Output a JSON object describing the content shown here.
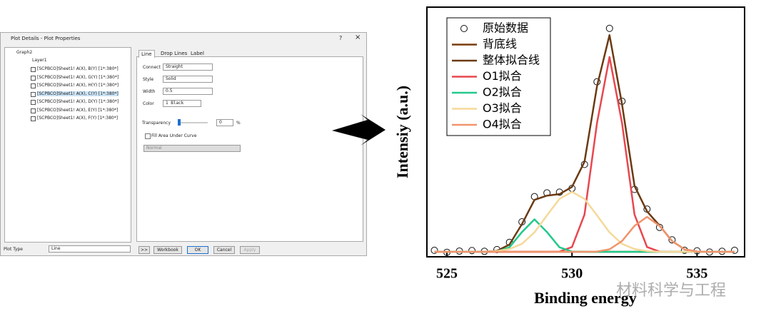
{
  "dialog": {
    "title": "Plot Details - Plot Properties",
    "help": "?",
    "close": "×",
    "tree": {
      "root": "Graph2",
      "layer": "Layer1",
      "items": [
        "[SCPBCO]Sheet1! A(X), B(Y) [1*:380*]",
        "[SCPBCO]Sheet1! A(X), G(Y) [1*:380*]",
        "[SCPBCO]Sheet1! A(X), H(Y) [1*:380*]",
        "[SCPBCO]Sheet1! A(X), C(Y) [1*:380*]",
        "[SCPBCO]Sheet1! A(X), D(Y) [1*:380*]",
        "[SCPBCO]Sheet1! A(X), E(Y) [1*:380*]",
        "[SCPBCO]Sheet1! A(X), F(Y) [1*:380*]"
      ]
    },
    "tabs": [
      "Line",
      "Drop Lines",
      "Label"
    ],
    "fields": [
      {
        "label": "Connect",
        "value": "Straight"
      },
      {
        "label": "Style",
        "value": "Solid"
      },
      {
        "label": "Width",
        "value": "0.5"
      },
      {
        "label": "Color",
        "value": "1 Black"
      }
    ],
    "transparency": {
      "label": "Transparency",
      "value": "0",
      "unit": "%"
    },
    "fill": "Fill Area Under Curve",
    "fill_mode": "Normal",
    "plot_type": {
      "label": "Plot Type",
      "value": "Line"
    },
    "buttons": [
      ">>",
      "Workbook",
      "OK",
      "Cancel",
      "Apply"
    ]
  },
  "chart_data": {
    "type": "line",
    "xlabel": "Binding energy",
    "ylabel": "Intensiy (a.u.)",
    "xlim": [
      524.2,
      536.9
    ],
    "xticks": [
      525,
      530,
      535
    ],
    "ylim": [
      0,
      100
    ],
    "x": [
      524.5,
      525,
      525.5,
      526,
      526.5,
      527,
      527.5,
      528,
      528.5,
      529,
      529.5,
      530,
      530.5,
      531,
      531.5,
      532,
      532.5,
      533,
      533.5,
      534,
      534.5,
      535,
      535.5,
      536,
      536.5
    ],
    "series": [
      {
        "name": "原始数据",
        "color": "#111111",
        "style": "markers",
        "values": [
          2.6,
          1.8,
          2.3,
          2.5,
          2.2,
          2.9,
          5.8,
          14.0,
          24.1,
          25.6,
          25.9,
          27.4,
          37.0,
          70.1,
          91.5,
          62.3,
          27.0,
          19.1,
          11.8,
          6.8,
          2.6,
          2.4,
          1.9,
          2.2,
          2.6
        ]
      },
      {
        "name": "背底线",
        "color": "#7a3b0a",
        "style": "line",
        "values": [
          2,
          2,
          2,
          2,
          2,
          2,
          2,
          2,
          2,
          2,
          2,
          2,
          2,
          2,
          2,
          2,
          2,
          2,
          2,
          2,
          2,
          2,
          2,
          2,
          2
        ]
      },
      {
        "name": "整体拟合线",
        "color": "#6b3a12",
        "style": "line",
        "values": [
          2,
          2,
          2,
          2,
          2,
          2.4,
          4.9,
          13.1,
          22.8,
          24.5,
          25.1,
          28.0,
          38.1,
          68.3,
          88.8,
          61.1,
          28.4,
          18.2,
          12.5,
          6.3,
          3.0,
          2.1,
          2,
          2,
          2
        ]
      },
      {
        "name": "O1拟合",
        "color": "#e8474f",
        "style": "line",
        "values": [
          2,
          2,
          2,
          2,
          2,
          2,
          2,
          2,
          2,
          2,
          2.1,
          3.9,
          16.9,
          53.6,
          80,
          53.6,
          16.9,
          3.9,
          2.1,
          2,
          2,
          2,
          2,
          2,
          2
        ]
      },
      {
        "name": "O2拟合",
        "color": "#22c98a",
        "style": "line",
        "values": [
          2,
          2,
          2,
          2,
          2,
          2.1,
          3.8,
          9.9,
          15,
          9.9,
          3.8,
          2.1,
          2,
          2,
          2,
          2,
          2,
          2,
          2,
          2,
          2,
          2,
          2,
          2,
          2
        ]
      },
      {
        "name": "O3拟合",
        "color": "#f5d99a",
        "style": "line",
        "values": [
          2,
          2,
          2,
          2,
          2,
          2.3,
          3.1,
          5.2,
          9.8,
          16.6,
          23.2,
          26,
          23.2,
          16.6,
          9.8,
          5.2,
          3.1,
          2.3,
          2,
          2,
          2,
          2,
          2,
          2,
          2
        ]
      },
      {
        "name": "O4拟合",
        "color": "#f0946c",
        "style": "line",
        "values": [
          2,
          2,
          2,
          2,
          2,
          2,
          2,
          2,
          2,
          2,
          2,
          2,
          2,
          2.1,
          3.0,
          6.3,
          12.4,
          16,
          12.4,
          6.3,
          3.0,
          2.1,
          2,
          2,
          2
        ]
      }
    ],
    "watermark": "材料科学与工程"
  }
}
